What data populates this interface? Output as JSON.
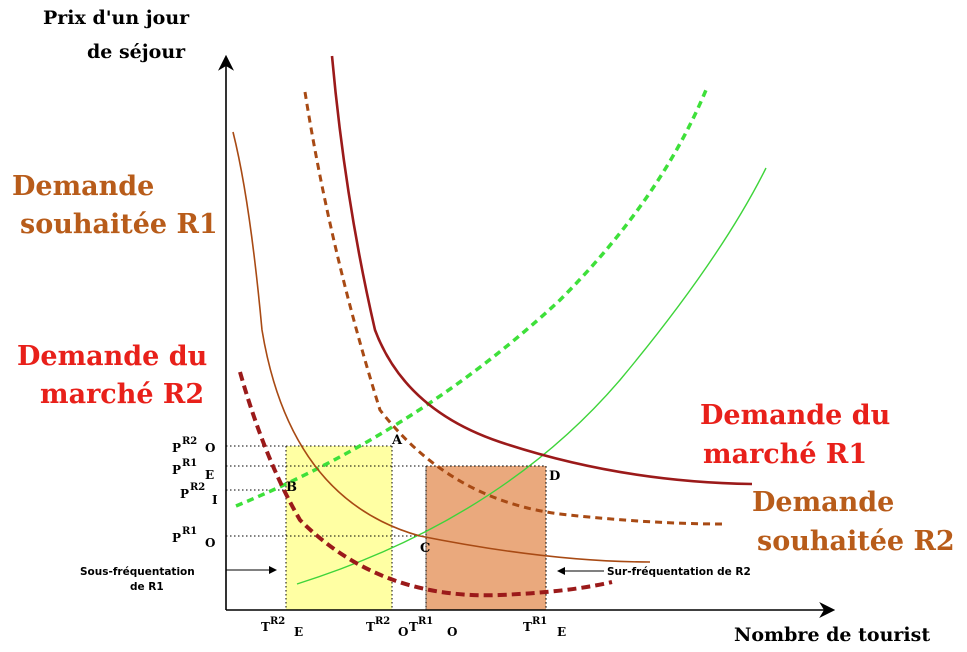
{
  "axes": {
    "y_label_line1": "Prix d'un jour",
    "y_label_line2": "de séjour",
    "x_label": "Nombre de tourist"
  },
  "curve_labels": {
    "souhaitee_r1_line1": "Demande",
    "souhaitee_r1_line2": "souhaitée R1",
    "marche_r2_line1": "Demande du",
    "marche_r2_line2": "marché R2",
    "marche_r1_line1": "Demande du",
    "marche_r1_line2": "marché R1",
    "souhaitee_r2_line1": "Demande",
    "souhaitee_r2_line2": "souhaitée R2"
  },
  "points": {
    "a": "A",
    "b": "B",
    "c": "C",
    "d": "D"
  },
  "y_ticks": [
    {
      "main": "P",
      "sup": "R2",
      "sub": "O"
    },
    {
      "main": "P",
      "sup": "R1",
      "sub": "E"
    },
    {
      "main": "P",
      "sup": "R2",
      "sub": "I"
    },
    {
      "main": "P",
      "sup": "R1",
      "sub": "O"
    }
  ],
  "x_ticks": [
    {
      "main": "T",
      "sup": "R2",
      "sub": "E"
    },
    {
      "main": "T",
      "sup": "R2",
      "sub": "O"
    },
    {
      "main": "T",
      "sup": "R1",
      "sub": "O"
    },
    {
      "main": "T",
      "sup": "R1",
      "sub": "E"
    }
  ],
  "annotations": {
    "sous_line1": "Sous-fréquentation",
    "sous_line2": "de R1",
    "sur": "Sur-fréquentation de R2"
  },
  "colors": {
    "souhaitee_r1": "#b85c1a",
    "marche_r2": "#e8201a",
    "marche_r1": "#e8201a",
    "souhaitee_r2": "#b85c1a",
    "curve_marche_r1": "#9b1a1a",
    "curve_marche_r2": "#9b1a1a",
    "curve_souhaitee": "#a84a14",
    "supply_dashed": "#3ee03a",
    "supply_solid": "#3ed43a",
    "yellow_zone": "#ffff99",
    "orange_zone": "#e8a070"
  }
}
